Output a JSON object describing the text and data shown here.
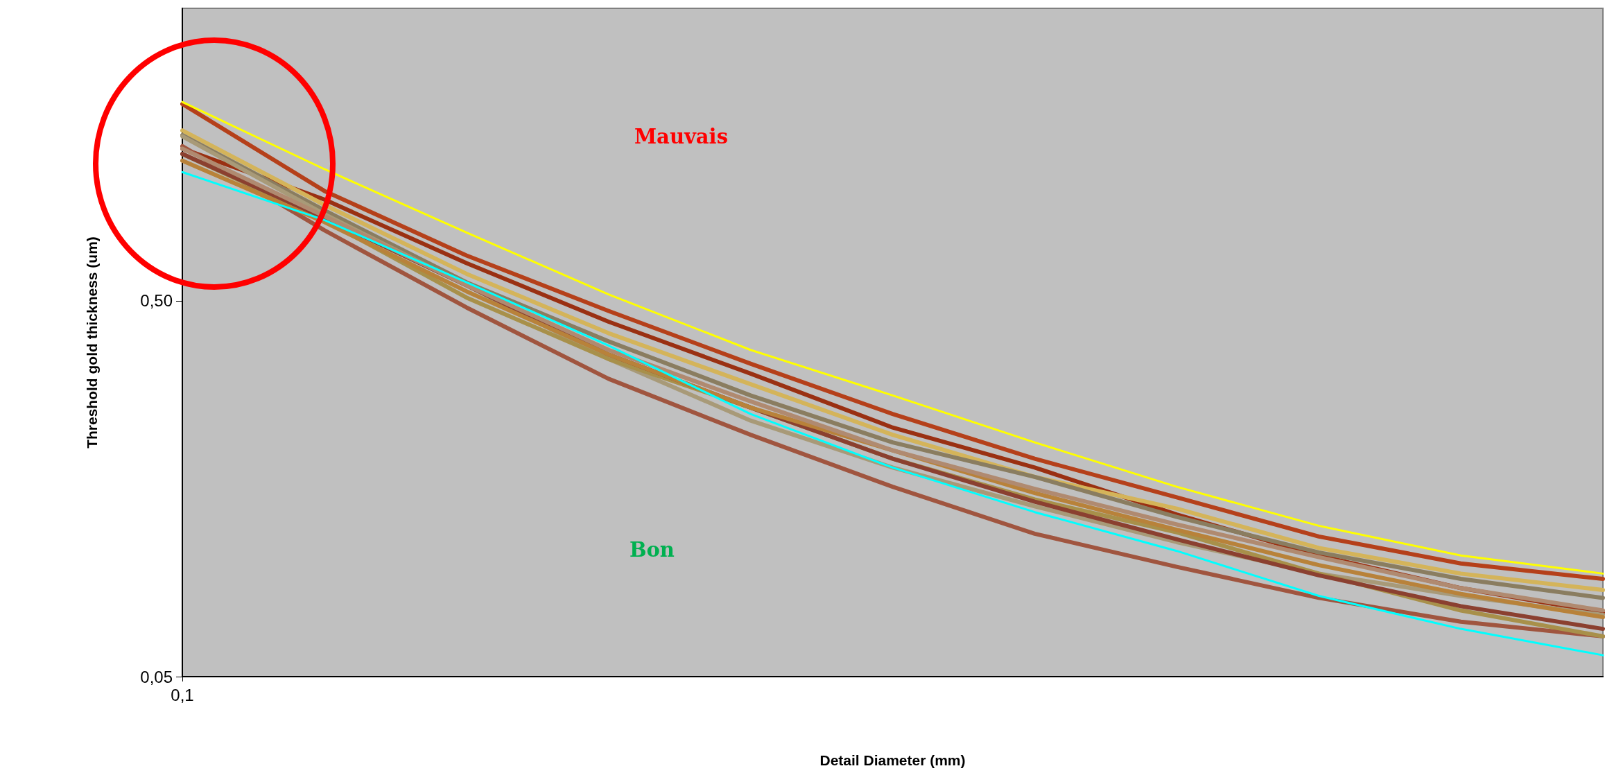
{
  "chart_data": {
    "type": "line",
    "xlabel": "Detail Diameter (mm)",
    "ylabel": "Threshold gold thickness (um)",
    "categories": [
      "0,1",
      null,
      null,
      null,
      null,
      null,
      null,
      null,
      null,
      null,
      null
    ],
    "series": [
      {
        "color": "#ffff00",
        "values": [
          1.69,
          1.12,
          0.76,
          0.52,
          0.37,
          0.28,
          0.21,
          0.16,
          0.126,
          0.105,
          0.094
        ]
      },
      {
        "color": "#b5401a",
        "values": [
          1.67,
          0.98,
          0.66,
          0.47,
          0.34,
          0.25,
          0.19,
          0.15,
          0.118,
          0.1,
          0.091
        ]
      },
      {
        "color": "#9a3012",
        "values": [
          1.27,
          0.93,
          0.63,
          0.44,
          0.32,
          0.23,
          0.18,
          0.135,
          0.105,
          0.086,
          0.074
        ]
      },
      {
        "color": "#d4b45a",
        "values": [
          1.42,
          0.9,
          0.59,
          0.41,
          0.3,
          0.22,
          0.17,
          0.14,
          0.11,
          0.094,
          0.085
        ]
      },
      {
        "color": "#8a7d60",
        "values": [
          1.38,
          0.87,
          0.56,
          0.39,
          0.28,
          0.21,
          0.17,
          0.133,
          0.107,
          0.091,
          0.081
        ]
      },
      {
        "color": "#a0553f",
        "values": [
          1.29,
          0.77,
          0.48,
          0.31,
          0.22,
          0.16,
          0.12,
          0.098,
          0.081,
          0.07,
          0.064
        ]
      },
      {
        "color": "#00ffff",
        "values": [
          1.1,
          0.82,
          0.56,
          0.38,
          0.25,
          0.18,
          0.137,
          0.108,
          0.082,
          0.067,
          0.057
        ]
      },
      {
        "color": "#a89a78",
        "values": [
          1.37,
          0.85,
          0.55,
          0.35,
          0.24,
          0.18,
          0.142,
          0.114,
          0.094,
          0.082,
          0.073
        ]
      },
      {
        "color": "#a8904a",
        "values": [
          1.23,
          0.82,
          0.51,
          0.35,
          0.26,
          0.19,
          0.148,
          0.121,
          0.094,
          0.075,
          0.064
        ]
      },
      {
        "color": "#8b4030",
        "values": [
          1.23,
          0.83,
          0.55,
          0.36,
          0.26,
          0.19,
          0.146,
          0.116,
          0.093,
          0.077,
          0.067
        ]
      },
      {
        "color": "#b8823a",
        "values": [
          1.18,
          0.81,
          0.53,
          0.36,
          0.26,
          0.2,
          0.154,
          0.123,
          0.099,
          0.083,
          0.072
        ]
      },
      {
        "color": "#b08a70",
        "values": [
          1.27,
          0.84,
          0.55,
          0.37,
          0.27,
          0.2,
          0.158,
          0.127,
          0.104,
          0.086,
          0.075
        ]
      }
    ],
    "log": "y",
    "ylim": [
      0.05,
      3.0
    ],
    "yticks": [
      {
        "value": 0.05,
        "label": "0,05"
      },
      {
        "value": 0.5,
        "label": "0,50"
      }
    ],
    "grid": false,
    "marker": "none",
    "line_style": "solid",
    "annotations": [
      "Mauvais",
      "Bon"
    ]
  }
}
